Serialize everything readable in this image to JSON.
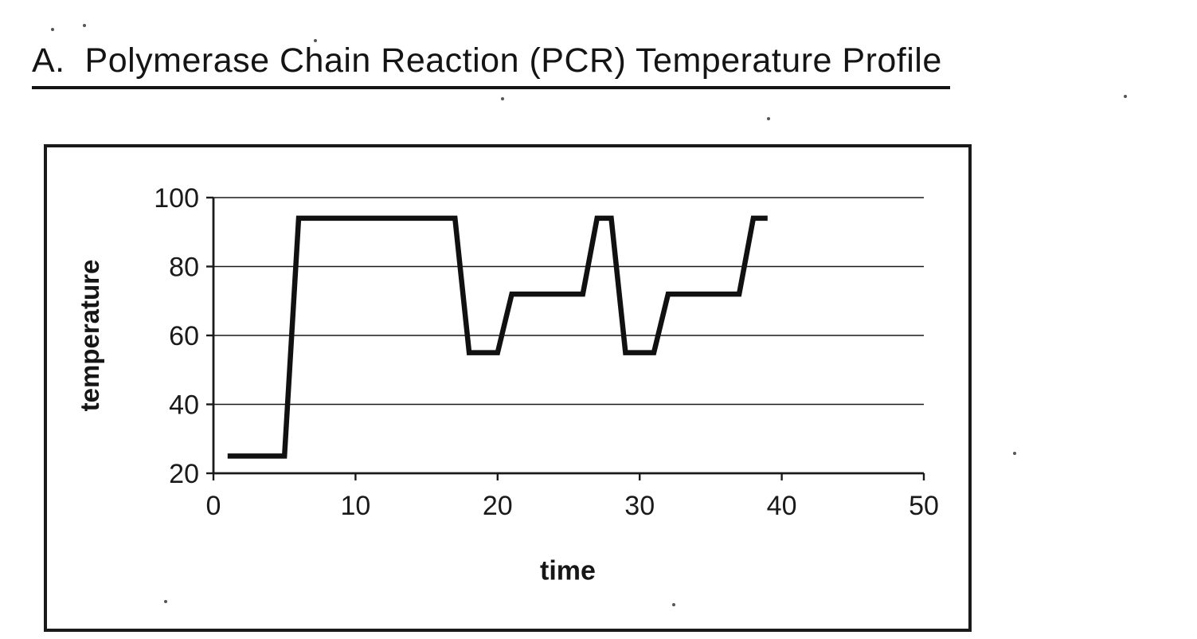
{
  "page": {
    "title": "A.  Polymerase Chain Reaction (PCR) Temperature Profile"
  },
  "chart_data": {
    "type": "line",
    "title": "",
    "xlabel": "time",
    "ylabel": "temperature",
    "xlim": [
      0,
      50
    ],
    "ylim": [
      20,
      100
    ],
    "x_ticks": [
      0,
      10,
      20,
      30,
      40,
      50
    ],
    "y_ticks": [
      20,
      40,
      60,
      80,
      100
    ],
    "grid": "horizontal",
    "legend": "none",
    "line_color": "#111111",
    "series": [
      {
        "name": "pcr-temperature-profile",
        "points": [
          [
            1,
            25
          ],
          [
            5,
            25
          ],
          [
            6,
            94
          ],
          [
            17,
            94
          ],
          [
            18,
            55
          ],
          [
            20,
            55
          ],
          [
            21,
            72
          ],
          [
            26,
            72
          ],
          [
            27,
            94
          ],
          [
            28,
            94
          ],
          [
            29,
            55
          ],
          [
            31,
            55
          ],
          [
            32,
            72
          ],
          [
            37,
            72
          ],
          [
            38,
            94
          ],
          [
            39,
            94
          ]
        ]
      }
    ]
  }
}
